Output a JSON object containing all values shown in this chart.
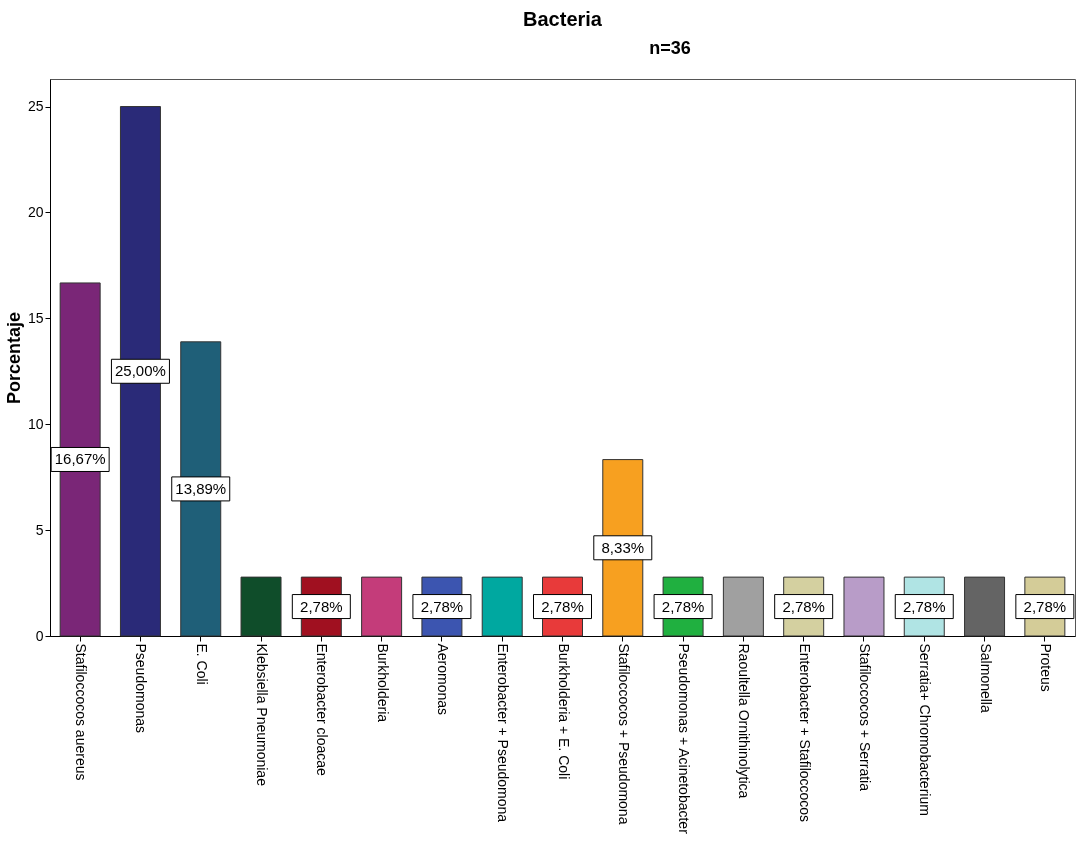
{
  "chart_data": {
    "type": "bar",
    "title": "Bacteria",
    "ylabel": "Porcentaje",
    "annotations": [
      "n=36"
    ],
    "categories": [
      "Stafiloccocos auereus",
      "Pseudomonas",
      "E. Coli",
      "Klebsiella Pneumoniae",
      "Enterobacter cloacae",
      "Burkholderia",
      "Aeromonas",
      "Enterobacter + Pseudomona",
      "Burkholderia + E. Coli",
      "Stafiloccocos + Pseudomona",
      "Pseudomonas + Acinetobacter",
      "Raoultella Ornithinolytica",
      "Enterobacter + Stafiloccocos",
      "Stafiloccocos + Serratia",
      "Serratia+ Chromobacterium",
      "Salmonella",
      "Proteus"
    ],
    "values": [
      16.67,
      25.0,
      13.89,
      2.78,
      2.78,
      2.78,
      2.78,
      2.78,
      2.78,
      8.33,
      2.78,
      2.78,
      2.78,
      2.78,
      2.78,
      2.78,
      2.78
    ],
    "value_labels": [
      "16,67%",
      "25,00%",
      "13,89%",
      null,
      "2,78%",
      null,
      "2,78%",
      null,
      "2,78%",
      "8,33%",
      "2,78%",
      null,
      "2,78%",
      null,
      "2,78%",
      null,
      "2,78%"
    ],
    "colors": [
      "#7a2677",
      "#2a2a78",
      "#1f5f78",
      "#0f4d2a",
      "#a01020",
      "#c43c7a",
      "#3c55b0",
      "#00a8a0",
      "#e83a3a",
      "#f7a020",
      "#20b040",
      "#a0a0a0",
      "#d4d0a0",
      "#b89cc8",
      "#b0e4e4",
      "#646464",
      "#d4cc98"
    ],
    "ylim": [
      0,
      26.3
    ],
    "yticks": [
      0,
      5,
      10,
      15,
      20,
      25
    ],
    "grid": false,
    "legend": false
  }
}
